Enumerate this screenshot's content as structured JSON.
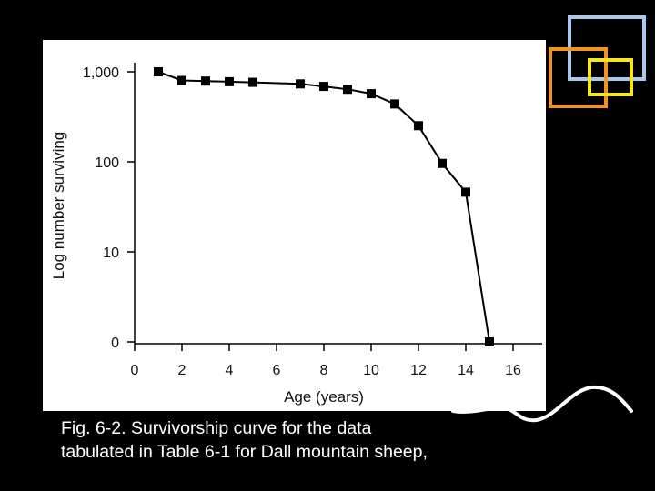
{
  "slide": {
    "caption_lines": [
      "Fig. 6-2. Survivorship curve for the data",
      "tabulated in Table 6-1 for Dall mountain sheep,"
    ],
    "colors": {
      "background": "#000000",
      "panel": "#ffffff",
      "square_blue": "#a8c8f0",
      "square_orange": "#f0961e",
      "square_yellow": "#f5e61e",
      "swoosh": "#ffffff"
    }
  },
  "chart_data": {
    "type": "line",
    "title": "",
    "xlabel": "Age (years)",
    "ylabel": "Log number surviving",
    "y_scale": "log",
    "xlim": [
      0,
      16
    ],
    "x_ticks": [
      0,
      2,
      4,
      6,
      8,
      10,
      12,
      14,
      16
    ],
    "x_tick_labels": [
      "0",
      "2",
      "4",
      "6",
      "8",
      "10",
      "12",
      "14",
      "16"
    ],
    "y_tick_labels": [
      "1,000",
      "100",
      "10",
      "0"
    ],
    "grid": false,
    "legend": "none",
    "marker": "square",
    "line_color": "#000000",
    "series": [
      {
        "x": [
          1,
          2,
          3,
          4,
          5,
          7,
          8,
          9,
          10,
          11,
          12,
          13,
          14,
          15
        ],
        "y": [
          1000,
          801,
          789,
          776,
          764,
          734,
          688,
          640,
          571,
          439,
          252,
          96,
          46,
          1
        ]
      }
    ]
  }
}
